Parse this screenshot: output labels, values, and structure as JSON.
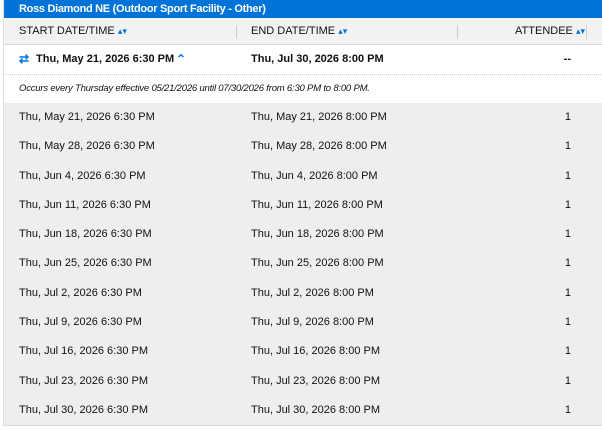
{
  "title": "Ross Diamond NE (Outdoor Sport Facility - Other)",
  "columns": {
    "start": "START DATE/TIME",
    "end": "END DATE/TIME",
    "attendee": "ATTENDEE"
  },
  "icons": {
    "sort": "sort-icon",
    "repeat": "repeat-icon",
    "collapse": "chevron-up-icon"
  },
  "accent": "#0073d9",
  "series": {
    "start": "Thu, May 21, 2026 6:30 PM",
    "end": "Thu, Jul 30, 2026 8:00 PM",
    "attendee": "--",
    "note": "Occurs every Thursday effective 05/21/2026 until 07/30/2026 from 6:30 PM to 8:00 PM."
  },
  "rows": [
    {
      "start": "Thu, May 21, 2026 6:30 PM",
      "end": "Thu, May 21, 2026 8:00 PM",
      "attendee": "1"
    },
    {
      "start": "Thu, May 28, 2026 6:30 PM",
      "end": "Thu, May 28, 2026 8:00 PM",
      "attendee": "1"
    },
    {
      "start": "Thu, Jun 4, 2026 6:30 PM",
      "end": "Thu, Jun 4, 2026 8:00 PM",
      "attendee": "1"
    },
    {
      "start": "Thu, Jun 11, 2026 6:30 PM",
      "end": "Thu, Jun 11, 2026 8:00 PM",
      "attendee": "1"
    },
    {
      "start": "Thu, Jun 18, 2026 6:30 PM",
      "end": "Thu, Jun 18, 2026 8:00 PM",
      "attendee": "1"
    },
    {
      "start": "Thu, Jun 25, 2026 6:30 PM",
      "end": "Thu, Jun 25, 2026 8:00 PM",
      "attendee": "1"
    },
    {
      "start": "Thu, Jul 2, 2026 6:30 PM",
      "end": "Thu, Jul 2, 2026 8:00 PM",
      "attendee": "1"
    },
    {
      "start": "Thu, Jul 9, 2026 6:30 PM",
      "end": "Thu, Jul 9, 2026 8:00 PM",
      "attendee": "1"
    },
    {
      "start": "Thu, Jul 16, 2026 6:30 PM",
      "end": "Thu, Jul 16, 2026 8:00 PM",
      "attendee": "1"
    },
    {
      "start": "Thu, Jul 23, 2026 6:30 PM",
      "end": "Thu, Jul 23, 2026 8:00 PM",
      "attendee": "1"
    },
    {
      "start": "Thu, Jul 30, 2026 6:30 PM",
      "end": "Thu, Jul 30, 2026 8:00 PM",
      "attendee": "1"
    }
  ]
}
